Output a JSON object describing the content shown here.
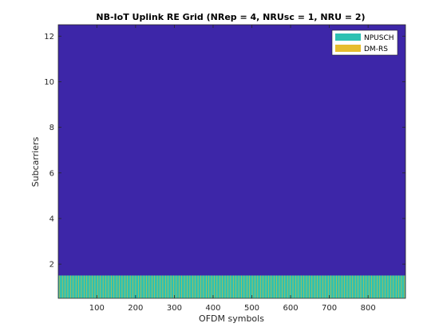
{
  "chart_data": {
    "type": "heatmap",
    "title": "NB-IoT Uplink RE Grid (NRep = 4, NRUsc = 1, NRU = 2)",
    "xlabel": "OFDM symbols",
    "ylabel": "Subcarriers",
    "xlim": [
      0.5,
      896.5
    ],
    "ylim": [
      0.5,
      12.5
    ],
    "xticks": [
      100,
      200,
      300,
      400,
      500,
      600,
      700,
      800
    ],
    "yticks": [
      2,
      4,
      6,
      8,
      10,
      12
    ],
    "num_symbols": 896,
    "num_subcarriers": 12,
    "occupied_subcarriers": [
      1
    ],
    "dmrs_symbol_period": 7,
    "dmrs_symbol_offset": 4,
    "colors": {
      "empty": "#3d26a8",
      "NPUSCH": "#2dc1b2",
      "DM-RS": "#e7bd2e"
    },
    "legend": {
      "position": "top-right",
      "entries": [
        {
          "name": "NPUSCH",
          "color": "#2dc1b2"
        },
        {
          "name": "DM-RS",
          "color": "#e7bd2e"
        }
      ]
    }
  }
}
